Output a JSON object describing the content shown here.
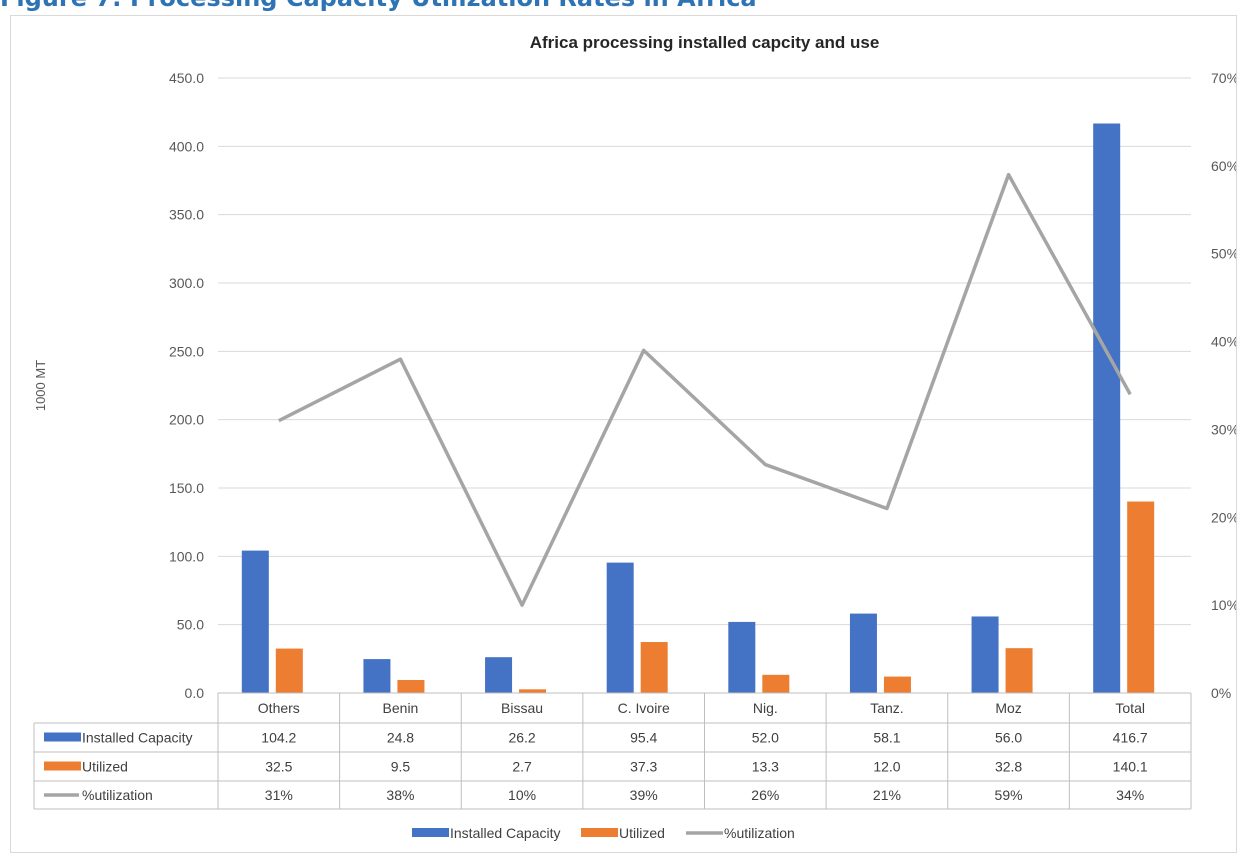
{
  "figure_caption": "Figure 7: Processing Capacity Utilization Rates in Africa",
  "chart_data": {
    "type": "bar",
    "title": "Africa processing installed capcity and use",
    "ylabel": "1000 MT",
    "ylim": [
      0,
      450
    ],
    "y_ticks": [
      "0.0",
      "50.0",
      "100.0",
      "150.0",
      "200.0",
      "250.0",
      "300.0",
      "350.0",
      "400.0",
      "450.0"
    ],
    "y2lim": [
      0,
      0.7
    ],
    "y2_ticks": [
      "0%",
      "10%",
      "20%",
      "30%",
      "40%",
      "50%",
      "60%",
      "70%"
    ],
    "grid": true,
    "legend_position": "bottom",
    "categories": [
      "Others",
      "Benin",
      "Bissau",
      "C. Ivoire",
      "Nig.",
      "Tanz.",
      "Moz",
      "Total"
    ],
    "series": [
      {
        "name": "Installed Capacity",
        "type": "bar",
        "axis": "primary",
        "color": "#4472c4",
        "values": [
          104.2,
          24.8,
          26.2,
          95.4,
          52.0,
          58.1,
          56.0,
          416.7
        ],
        "labels": [
          "104.2",
          "24.8",
          "26.2",
          "95.4",
          "52.0",
          "58.1",
          "56.0",
          "416.7"
        ]
      },
      {
        "name": "Utilized",
        "type": "bar",
        "axis": "primary",
        "color": "#ed7d31",
        "values": [
          32.5,
          9.5,
          2.7,
          37.3,
          13.3,
          12.0,
          32.8,
          140.1
        ],
        "labels": [
          "32.5",
          "9.5",
          "2.7",
          "37.3",
          "13.3",
          "12.0",
          "32.8",
          "140.1"
        ]
      },
      {
        "name": "%utilization",
        "type": "line",
        "axis": "secondary",
        "color": "#a5a5a5",
        "values": [
          0.31,
          0.38,
          0.1,
          0.39,
          0.26,
          0.21,
          0.59,
          0.34
        ],
        "labels": [
          "31%",
          "38%",
          "10%",
          "39%",
          "26%",
          "21%",
          "59%",
          "34%"
        ]
      }
    ]
  }
}
